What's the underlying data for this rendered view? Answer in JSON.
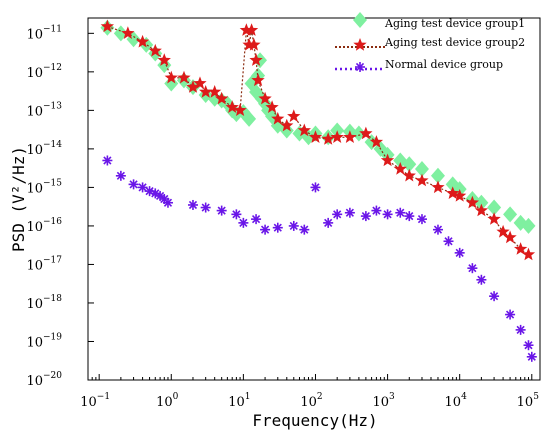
{
  "chart_data": {
    "type": "scatter",
    "x_scale": "log",
    "y_scale": "log",
    "xlim": [
      0.07,
      130000
    ],
    "ylim": [
      1e-20,
      2.5e-11
    ],
    "xlabel": "Frequency(Hz)",
    "ylabel": "PSD (V²/Hz)",
    "x_ticks": [
      {
        "value": 0.1,
        "base": "10",
        "exp": "−1"
      },
      {
        "value": 1,
        "base": "10",
        "exp": "0"
      },
      {
        "value": 10,
        "base": "10",
        "exp": "1"
      },
      {
        "value": 100,
        "base": "10",
        "exp": "2"
      },
      {
        "value": 1000,
        "base": "10",
        "exp": "3"
      },
      {
        "value": 10000,
        "base": "10",
        "exp": "4"
      },
      {
        "value": 100000,
        "base": "10",
        "exp": "5"
      }
    ],
    "y_ticks": [
      {
        "value": 1e-11,
        "base": "10",
        "exp": "−11"
      },
      {
        "value": 1e-12,
        "base": "10",
        "exp": "−12"
      },
      {
        "value": 1e-13,
        "base": "10",
        "exp": "−13"
      },
      {
        "value": 1e-14,
        "base": "10",
        "exp": "−14"
      },
      {
        "value": 1e-15,
        "base": "10",
        "exp": "−15"
      },
      {
        "value": 1e-16,
        "base": "10",
        "exp": "−16"
      },
      {
        "value": 1e-17,
        "base": "10",
        "exp": "−17"
      },
      {
        "value": 1e-18,
        "base": "10",
        "exp": "−18"
      },
      {
        "value": 1e-19,
        "base": "10",
        "exp": "−19"
      },
      {
        "value": 1e-20,
        "base": "10",
        "exp": "−20"
      }
    ],
    "grid": false,
    "legend_position": "top-right",
    "series": [
      {
        "name": "Aging test device group1",
        "marker": "diamond",
        "color": "#7ff0a0",
        "points": [
          [
            0.13,
            1.4e-11
          ],
          [
            0.2,
            1e-11
          ],
          [
            0.3,
            7e-12
          ],
          [
            0.45,
            5e-12
          ],
          [
            0.6,
            3e-12
          ],
          [
            0.8,
            1.5e-12
          ],
          [
            1.0,
            5e-13
          ],
          [
            1.5,
            6e-13
          ],
          [
            2.0,
            4e-13
          ],
          [
            3.0,
            2.5e-13
          ],
          [
            4.0,
            2e-13
          ],
          [
            5.0,
            1.8e-13
          ],
          [
            6.0,
            1.5e-13
          ],
          [
            7.0,
            1e-13
          ],
          [
            8.0,
            8e-14
          ],
          [
            10,
            9e-14
          ],
          [
            12,
            6e-14
          ],
          [
            13,
            5e-13
          ],
          [
            15,
            3e-13
          ],
          [
            16,
            8e-13
          ],
          [
            17,
            2e-12
          ],
          [
            18,
            2e-13
          ],
          [
            20,
            1.5e-13
          ],
          [
            22,
            1e-13
          ],
          [
            25,
            7e-14
          ],
          [
            30,
            4e-14
          ],
          [
            40,
            3e-14
          ],
          [
            60,
            2.5e-14
          ],
          [
            80,
            2e-14
          ],
          [
            100,
            2.5e-14
          ],
          [
            150,
            2e-14
          ],
          [
            200,
            3e-14
          ],
          [
            300,
            2.8e-14
          ],
          [
            400,
            2.5e-14
          ],
          [
            600,
            1.5e-14
          ],
          [
            800,
            1e-14
          ],
          [
            1000,
            7e-15
          ],
          [
            1500,
            5e-15
          ],
          [
            2000,
            4e-15
          ],
          [
            3000,
            3e-15
          ],
          [
            5000,
            2e-15
          ],
          [
            8000,
            1.2e-15
          ],
          [
            10000,
            9e-16
          ],
          [
            15000,
            5e-16
          ],
          [
            20000,
            4e-16
          ],
          [
            30000,
            3e-16
          ],
          [
            50000,
            2e-16
          ],
          [
            70000,
            1.2e-16
          ],
          [
            90000,
            1e-16
          ]
        ]
      },
      {
        "name": "Aging test device group2",
        "marker": "star",
        "color": "#dd1a1a",
        "line_color": "#8b2c10",
        "points": [
          [
            0.13,
            1.5e-11
          ],
          [
            0.25,
            1e-11
          ],
          [
            0.4,
            6e-12
          ],
          [
            0.6,
            3.5e-12
          ],
          [
            0.8,
            2e-12
          ],
          [
            1.0,
            7e-13
          ],
          [
            1.5,
            7e-13
          ],
          [
            2.0,
            4e-13
          ],
          [
            2.5,
            5e-13
          ],
          [
            3.0,
            3e-13
          ],
          [
            4.0,
            3e-13
          ],
          [
            5.0,
            2e-13
          ],
          [
            7.0,
            1.2e-13
          ],
          [
            9.0,
            1e-13
          ],
          [
            11,
            1.2e-11
          ],
          [
            12,
            5e-12
          ],
          [
            13,
            1.2e-11
          ],
          [
            14,
            5e-12
          ],
          [
            15,
            2e-12
          ],
          [
            16,
            6e-13
          ],
          [
            20,
            2e-13
          ],
          [
            25,
            1.2e-13
          ],
          [
            30,
            6e-14
          ],
          [
            40,
            4e-14
          ],
          [
            50,
            7e-14
          ],
          [
            70,
            3e-14
          ],
          [
            100,
            2e-14
          ],
          [
            150,
            1.8e-14
          ],
          [
            200,
            2e-14
          ],
          [
            300,
            2e-14
          ],
          [
            500,
            2.5e-14
          ],
          [
            700,
            1.5e-14
          ],
          [
            1000,
            5e-15
          ],
          [
            1500,
            3e-15
          ],
          [
            2000,
            2e-15
          ],
          [
            3000,
            1.5e-15
          ],
          [
            5000,
            1e-15
          ],
          [
            8000,
            7e-16
          ],
          [
            10000,
            6e-16
          ],
          [
            15000,
            4e-16
          ],
          [
            20000,
            2.5e-16
          ],
          [
            30000,
            1.5e-16
          ],
          [
            40000,
            7e-17
          ],
          [
            50000,
            5e-17
          ],
          [
            70000,
            2.5e-17
          ],
          [
            90000,
            1.8e-17
          ]
        ]
      },
      {
        "name": "Normal device group",
        "marker": "asterisk",
        "color": "#6a16e8",
        "points": [
          [
            0.13,
            5e-15
          ],
          [
            0.2,
            2e-15
          ],
          [
            0.3,
            1.2e-15
          ],
          [
            0.4,
            1e-15
          ],
          [
            0.5,
            8e-16
          ],
          [
            0.6,
            7e-16
          ],
          [
            0.7,
            6e-16
          ],
          [
            0.8,
            5e-16
          ],
          [
            0.9,
            4e-16
          ],
          [
            2.0,
            3.5e-16
          ],
          [
            3.0,
            3e-16
          ],
          [
            5.0,
            2.5e-16
          ],
          [
            8.0,
            2e-16
          ],
          [
            10,
            1.2e-16
          ],
          [
            15,
            1.5e-16
          ],
          [
            20,
            8e-17
          ],
          [
            30,
            9e-17
          ],
          [
            50,
            1e-16
          ],
          [
            70,
            8e-17
          ],
          [
            100,
            1e-15
          ],
          [
            150,
            1.2e-16
          ],
          [
            200,
            2e-16
          ],
          [
            300,
            2.2e-16
          ],
          [
            500,
            1.8e-16
          ],
          [
            700,
            2.5e-16
          ],
          [
            1000,
            2e-16
          ],
          [
            1500,
            2.2e-16
          ],
          [
            2000,
            1.8e-16
          ],
          [
            3000,
            1.5e-16
          ],
          [
            5000,
            8e-17
          ],
          [
            7000,
            4e-17
          ],
          [
            10000,
            2e-17
          ],
          [
            15000,
            8e-18
          ],
          [
            20000,
            4e-18
          ],
          [
            30000,
            1.5e-18
          ],
          [
            50000,
            5e-19
          ],
          [
            70000,
            2e-19
          ],
          [
            90000,
            8e-20
          ],
          [
            100000,
            4e-20
          ]
        ]
      }
    ]
  }
}
